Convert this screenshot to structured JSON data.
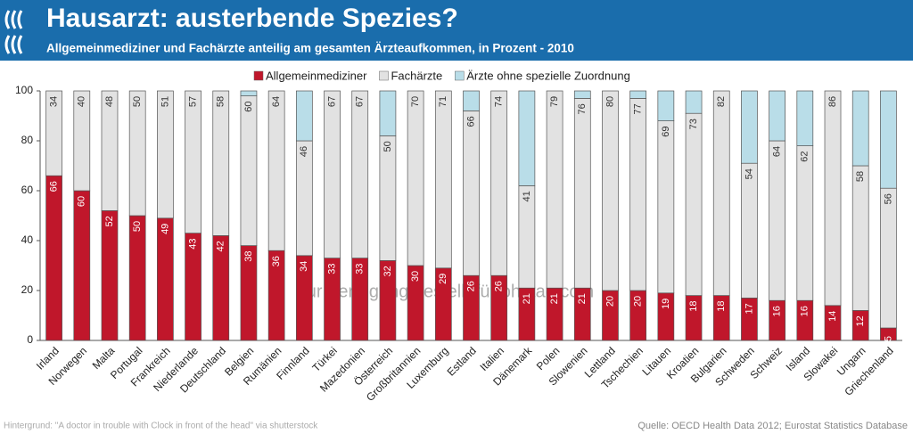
{
  "chart_data": {
    "type": "stacked-bar",
    "title": "Hausarzt: austerbende Spezies?",
    "subtitle": "Allgemeinmediziner und Fachärzte anteilig am gesamten Ärzteaufkommen, in Prozent - 2010",
    "categories": [
      "Irland",
      "Norwegen",
      "Malta",
      "Portugal",
      "Frankreich",
      "Niederlande",
      "Deutschland",
      "Belgien",
      "Rumänien",
      "Finnland",
      "Türkei",
      "Mazedonien",
      "Österreich",
      "Großbritannien",
      "Luxemburg",
      "Estland",
      "Italien",
      "Dänemark",
      "Polen",
      "Slowenien",
      "Lettland",
      "Tschechien",
      "Litauen",
      "Kroatien",
      "Bulgarien",
      "Schweden",
      "Schweiz",
      "Island",
      "Slowakei",
      "Ungarn",
      "Griechenland"
    ],
    "series": [
      {
        "name": "Allgemeinmediziner",
        "color": "#c0172b",
        "values": [
          66,
          60,
          52,
          50,
          49,
          43,
          42,
          38,
          36,
          34,
          33,
          33,
          32,
          30,
          29,
          26,
          26,
          21,
          21,
          21,
          20,
          20,
          19,
          18,
          18,
          17,
          16,
          16,
          14,
          12,
          5
        ]
      },
      {
        "name": "Fachärzte",
        "color": "#e2e2e2",
        "values": [
          34,
          40,
          48,
          50,
          51,
          57,
          58,
          60,
          64,
          46,
          67,
          67,
          50,
          70,
          71,
          66,
          74,
          41,
          79,
          76,
          80,
          77,
          69,
          73,
          82,
          54,
          64,
          62,
          86,
          58,
          56
        ]
      },
      {
        "name": "Ärzte ohne spezielle Zuordnung",
        "color": "#b9dde8",
        "values": [
          0,
          0,
          0,
          0,
          0,
          0,
          0,
          2,
          0,
          20,
          0,
          0,
          18,
          0,
          0,
          8,
          0,
          38,
          0,
          3,
          0,
          3,
          12,
          9,
          0,
          29,
          20,
          22,
          0,
          30,
          39
        ]
      }
    ],
    "ylim": [
      0,
      100
    ],
    "yticks": [
      0,
      20,
      40,
      60,
      80,
      100
    ],
    "grid": false,
    "legend": "top",
    "watermark": "zur Verfügung gestellt für photaq.com",
    "footnote": "Hintergrund: \"A doctor in trouble with Clock in front of the head\" via shutterstock",
    "source": "Quelle: OECD Health Data 2012; Eurostat Statistics Database"
  }
}
